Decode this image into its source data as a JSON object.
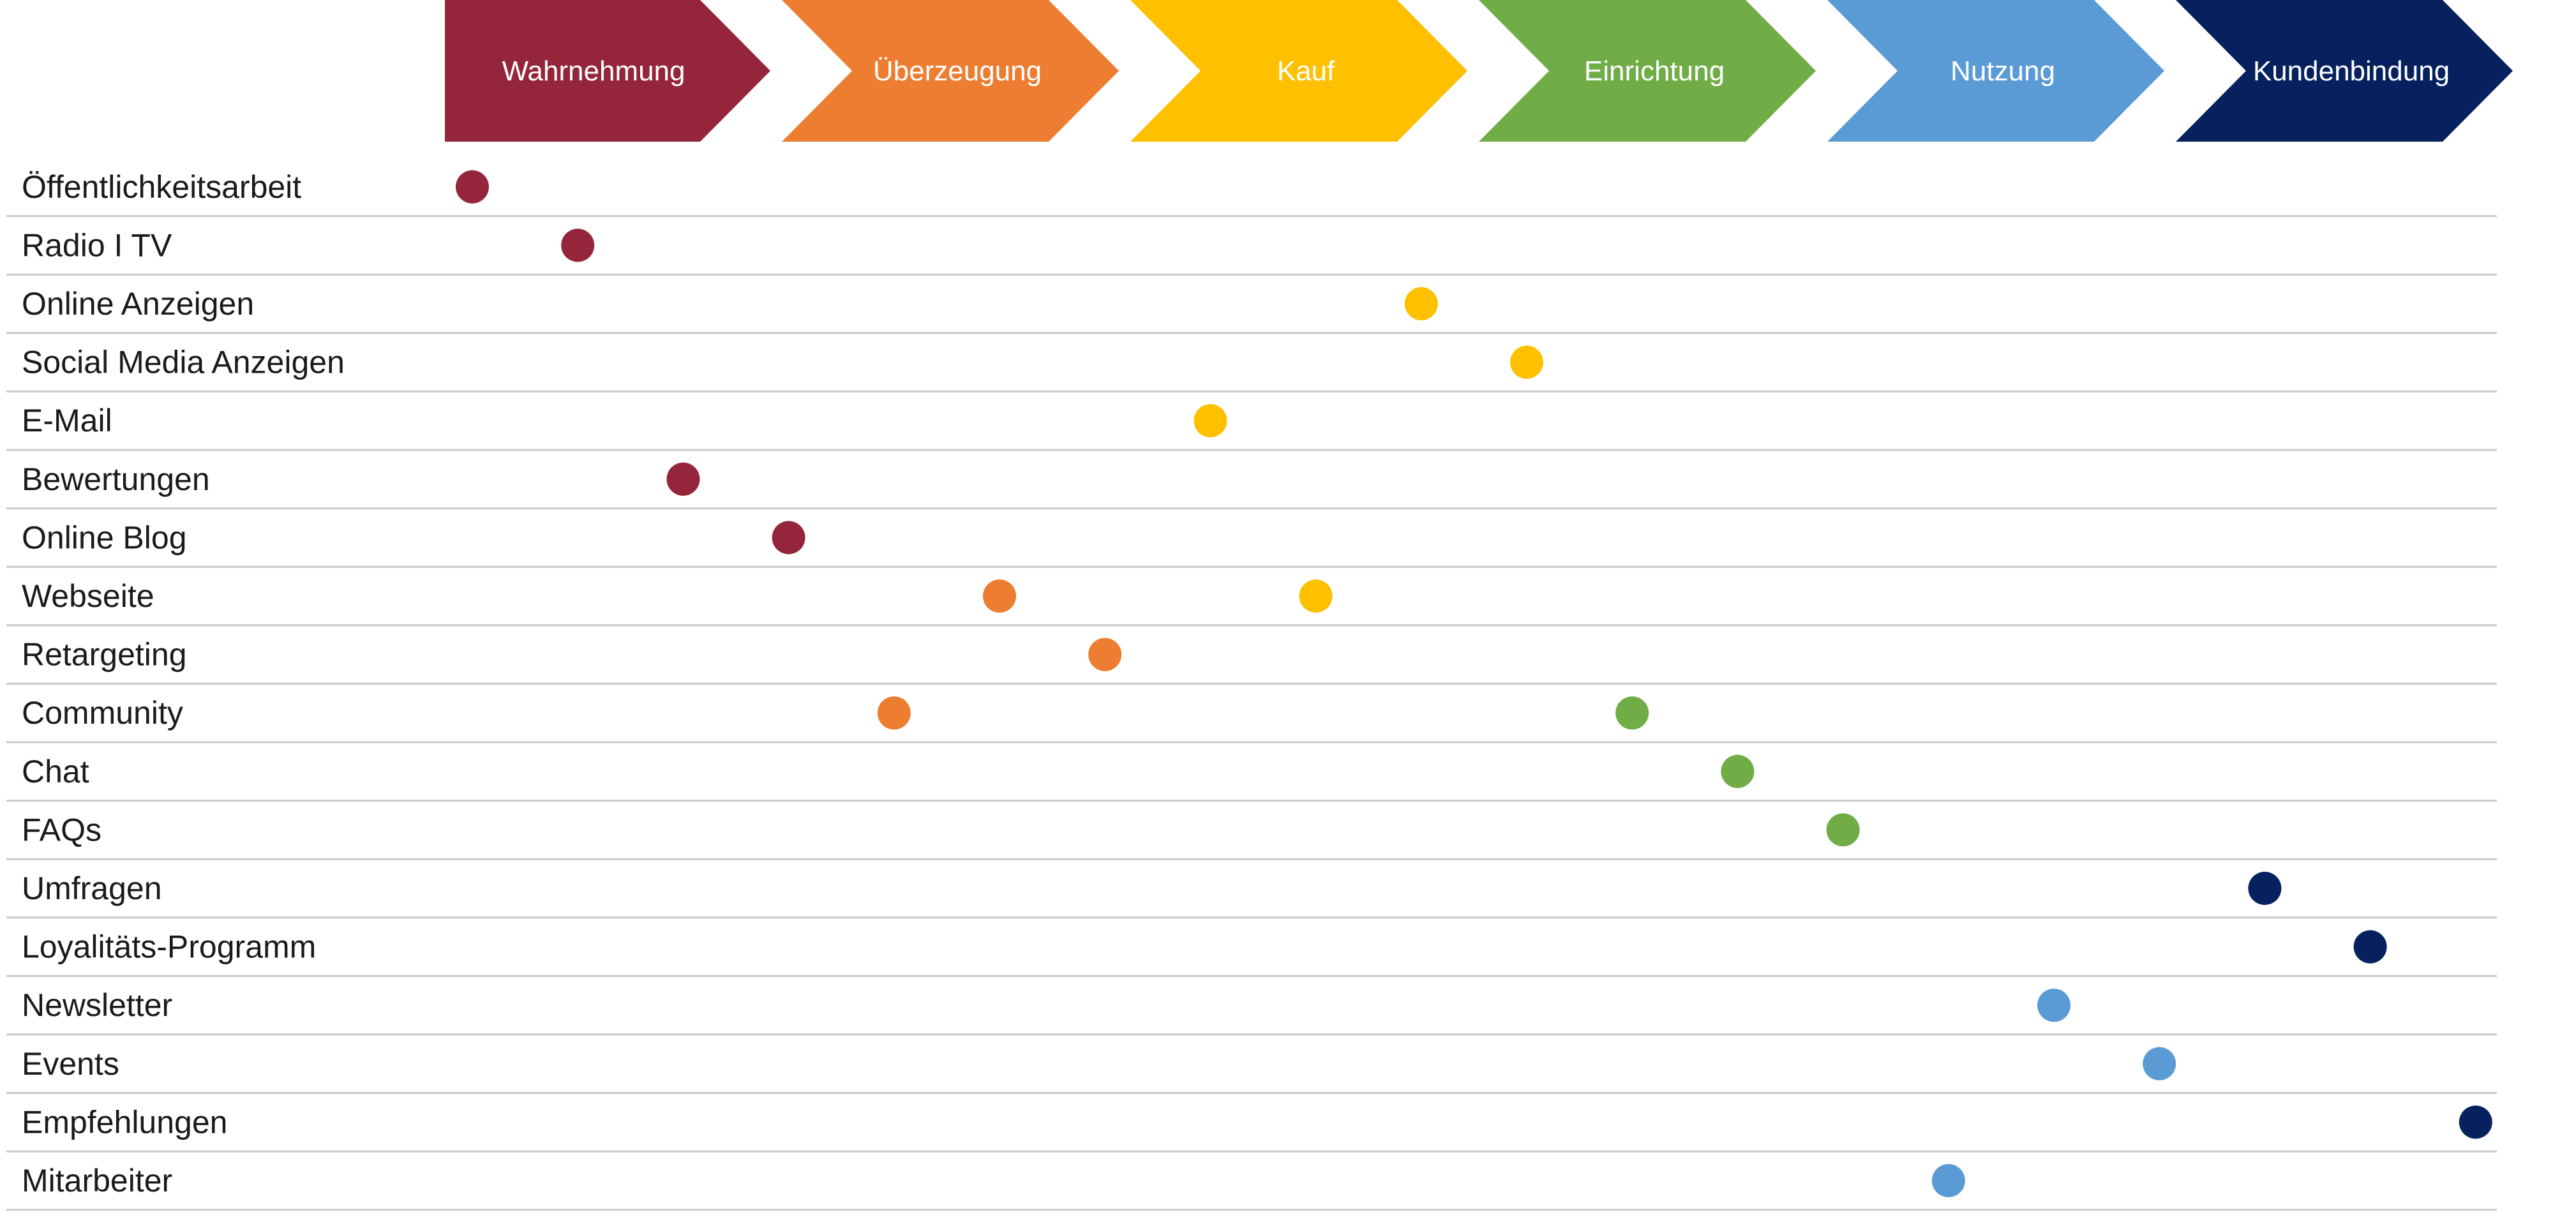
{
  "stages": [
    {
      "label": "Wahrnehmung",
      "color": "#95253a"
    },
    {
      "label": "Überzeugung",
      "color": "#ed7d31"
    },
    {
      "label": "Kauf",
      "color": "#ffc000"
    },
    {
      "label": "Einrichtung",
      "color": "#70ad47"
    },
    {
      "label": "Nutzung",
      "color": "#5b9bd5"
    },
    {
      "label": "Kundenbindung",
      "color": "#06215e"
    }
  ],
  "rows": [
    {
      "label": "Öffentlichkeitsarbeit",
      "dots": [
        {
          "stage": 0,
          "step": 0
        }
      ]
    },
    {
      "label": "Radio I TV",
      "dots": [
        {
          "stage": 0,
          "step": 1
        }
      ]
    },
    {
      "label": "Online Anzeigen",
      "dots": [
        {
          "stage": 2,
          "step": 9
        }
      ]
    },
    {
      "label": "Social Media Anzeigen",
      "dots": [
        {
          "stage": 2,
          "step": 10
        }
      ]
    },
    {
      "label": "E-Mail",
      "dots": [
        {
          "stage": 2,
          "step": 7
        }
      ]
    },
    {
      "label": "Bewertungen",
      "dots": [
        {
          "stage": 0,
          "step": 2
        }
      ]
    },
    {
      "label": "Online Blog",
      "dots": [
        {
          "stage": 0,
          "step": 3
        }
      ]
    },
    {
      "label": "Webseite",
      "dots": [
        {
          "stage": 1,
          "step": 5
        },
        {
          "stage": 2,
          "step": 8
        }
      ]
    },
    {
      "label": "Retargeting",
      "dots": [
        {
          "stage": 1,
          "step": 6
        }
      ]
    },
    {
      "label": "Community",
      "dots": [
        {
          "stage": 1,
          "step": 4
        },
        {
          "stage": 3,
          "step": 11
        }
      ]
    },
    {
      "label": "Chat",
      "dots": [
        {
          "stage": 3,
          "step": 12
        }
      ]
    },
    {
      "label": "FAQs",
      "dots": [
        {
          "stage": 3,
          "step": 13
        }
      ]
    },
    {
      "label": "Umfragen",
      "dots": [
        {
          "stage": 5,
          "step": 17
        }
      ]
    },
    {
      "label": "Loyalitäts-Programm",
      "dots": [
        {
          "stage": 5,
          "step": 18
        }
      ]
    },
    {
      "label": "Newsletter",
      "dots": [
        {
          "stage": 4,
          "step": 15
        }
      ]
    },
    {
      "label": "Events",
      "dots": [
        {
          "stage": 4,
          "step": 16
        }
      ]
    },
    {
      "label": "Empfehlungen",
      "dots": [
        {
          "stage": 5,
          "step": 19
        }
      ]
    },
    {
      "label": "Mitarbeiter",
      "dots": [
        {
          "stage": 4,
          "step": 14
        }
      ]
    }
  ]
}
